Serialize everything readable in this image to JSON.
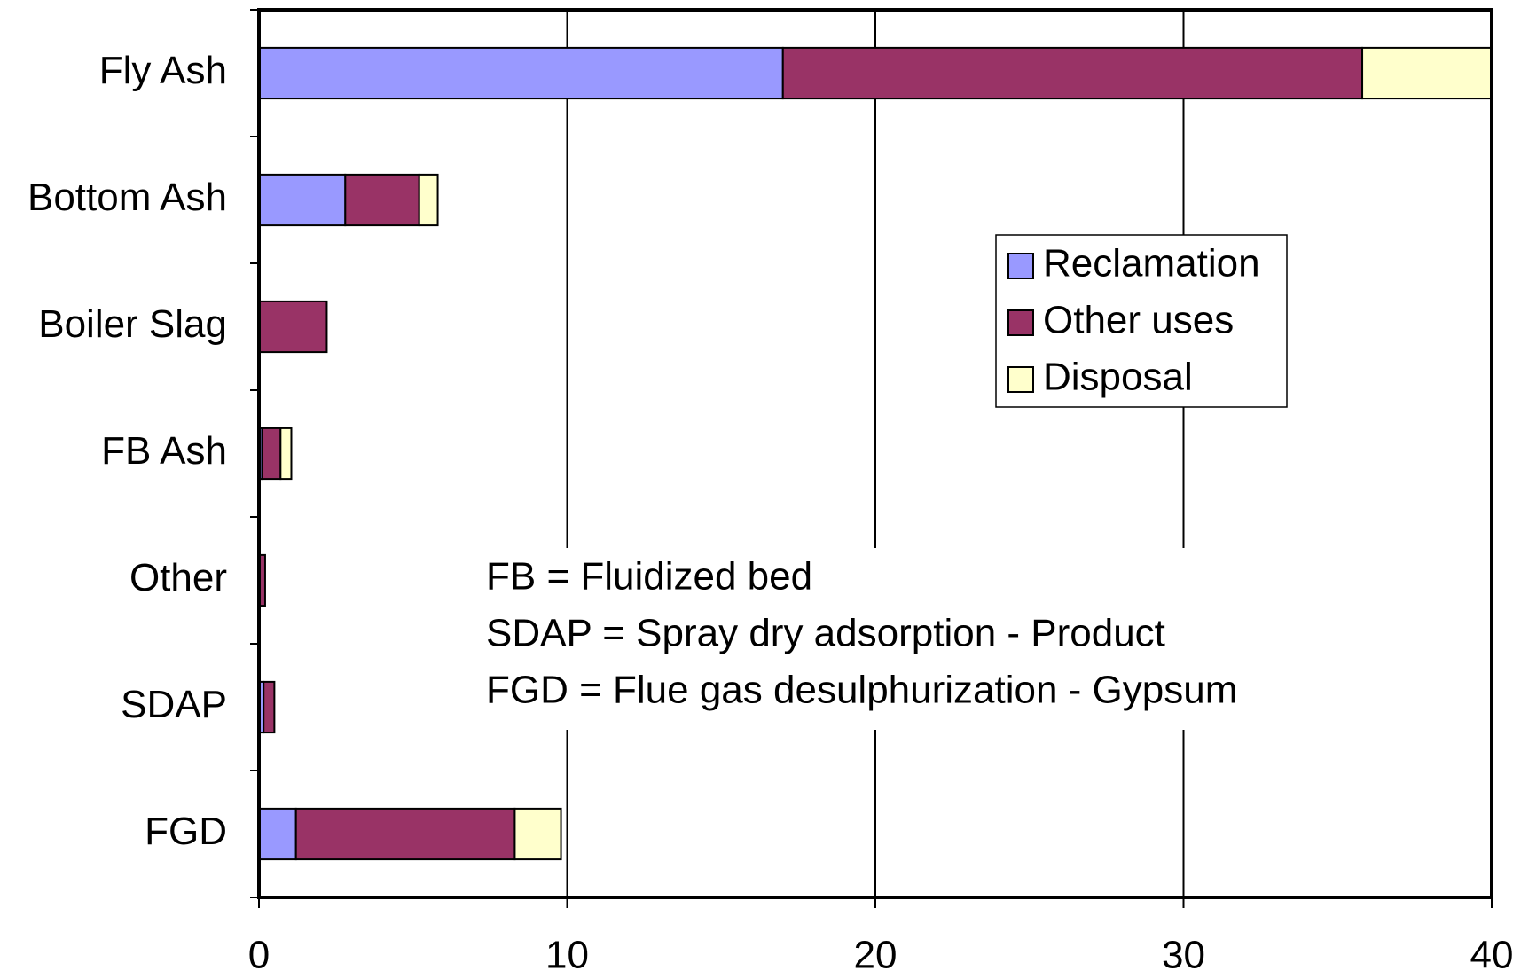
{
  "chart_data": {
    "type": "stacked-bar-horizontal",
    "categories": [
      "Fly Ash",
      "Bottom Ash",
      "Boiler Slag",
      "FB Ash",
      "Other",
      "SDAP",
      "FGD"
    ],
    "series": [
      {
        "name": "Reclamation",
        "color": "#9999ff",
        "values": [
          17.0,
          2.8,
          0,
          0.1,
          0,
          0.15,
          1.2
        ]
      },
      {
        "name": "Other uses",
        "color": "#993366",
        "values": [
          18.8,
          2.4,
          2.2,
          0.6,
          0.2,
          0.35,
          7.1
        ]
      },
      {
        "name": "Disposal",
        "color": "#ffffcc",
        "values": [
          4.2,
          0.6,
          0,
          0.35,
          0,
          0,
          1.5
        ]
      }
    ],
    "xlim": [
      0,
      40
    ],
    "xticks": [
      0,
      10,
      20,
      30,
      40
    ],
    "grid": true,
    "legend": "upper right",
    "annotations": [
      "FB = Fluidized bed",
      "SDAP = Spray dry adsorption - Product",
      "FGD  = Flue gas desulphurization - Gypsum"
    ]
  }
}
